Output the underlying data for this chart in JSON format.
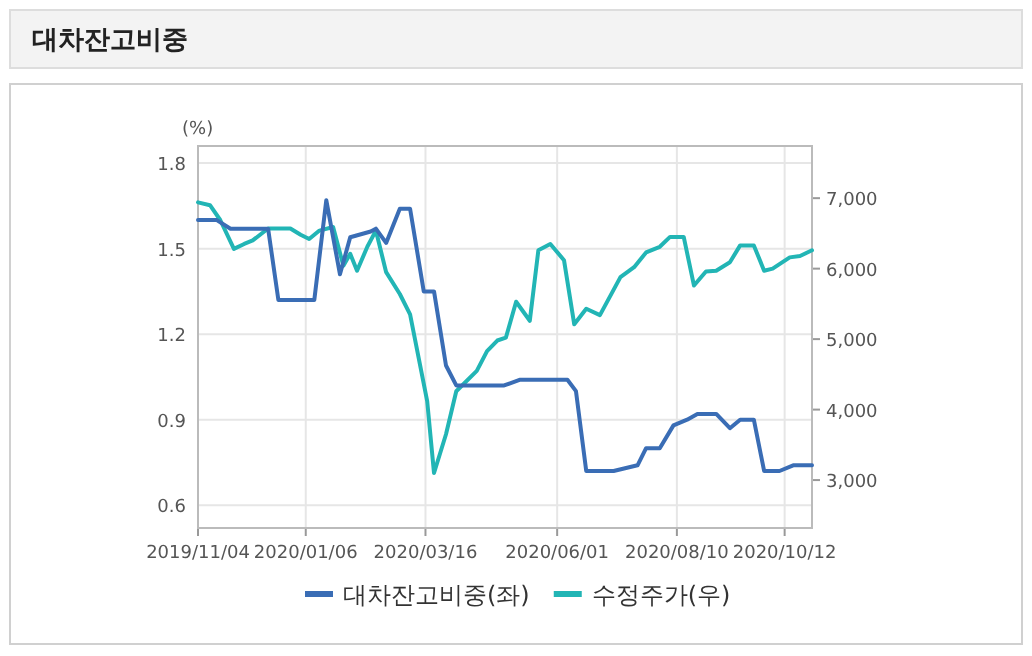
{
  "chart_data": {
    "type": "line",
    "title": "대차잔고비중",
    "ylabel": "(%)",
    "xlim": [
      "2019-11-04",
      "2020-10-28"
    ],
    "xticks": [
      {
        "value": "2019-11-04",
        "label": "2019/11/04"
      },
      {
        "value": "2020-01-06",
        "label": "2020/01/06"
      },
      {
        "value": "2020-03-16",
        "label": "2020/03/16"
      },
      {
        "value": "2020-06-01",
        "label": "2020/06/01"
      },
      {
        "value": "2020-08-10",
        "label": "2020/08/10"
      },
      {
        "value": "2020-10-12",
        "label": "2020/10/12"
      }
    ],
    "ylim": [
      0.52,
      1.86
    ],
    "yticks": [
      0.6,
      0.9,
      1.2,
      1.5,
      1.8
    ],
    "y2lim": [
      2320,
      7740
    ],
    "y2ticks": [
      {
        "value": 3000,
        "label": "3,000"
      },
      {
        "value": 4000,
        "label": "4,000"
      },
      {
        "value": 5000,
        "label": "5,000"
      },
      {
        "value": 6000,
        "label": "6,000"
      },
      {
        "value": 7000,
        "label": "7,000"
      }
    ],
    "grid": true,
    "legend": "bottom",
    "marker": "none",
    "line_style": "solid",
    "series": [
      {
        "name": "대차잔고비중(좌)",
        "color": "#3a6db5",
        "x": [
          "2019-11-04",
          "2019-11-15",
          "2019-11-23",
          "2019-12-15",
          "2019-12-21",
          "2020-01-11",
          "2020-01-18",
          "2020-01-26",
          "2020-02-01",
          "2020-02-13",
          "2020-02-16",
          "2020-02-22",
          "2020-03-01",
          "2020-03-07",
          "2020-03-15",
          "2020-03-21",
          "2020-03-28",
          "2020-04-03",
          "2020-05-01",
          "2020-05-10",
          "2020-06-07",
          "2020-06-12",
          "2020-06-18",
          "2020-07-04",
          "2020-07-18",
          "2020-07-23",
          "2020-07-31",
          "2020-08-08",
          "2020-08-16",
          "2020-08-22",
          "2020-09-02",
          "2020-09-10",
          "2020-09-16",
          "2020-09-24",
          "2020-09-30",
          "2020-10-09",
          "2020-10-17",
          "2020-10-28"
        ],
        "values": [
          1.6,
          1.6,
          1.57,
          1.57,
          1.32,
          1.32,
          1.67,
          1.41,
          1.54,
          1.56,
          1.57,
          1.52,
          1.64,
          1.64,
          1.35,
          1.35,
          1.09,
          1.02,
          1.02,
          1.04,
          1.04,
          1.0,
          0.72,
          0.72,
          0.74,
          0.8,
          0.8,
          0.88,
          0.9,
          0.92,
          0.92,
          0.87,
          0.9,
          0.9,
          0.72,
          0.72,
          0.74,
          0.74
        ]
      },
      {
        "name": "수정주가(우)",
        "color": "#22b5b5",
        "axis": "y2",
        "x": [
          "2019-11-04",
          "2019-11-11",
          "2019-11-17",
          "2019-11-25",
          "2019-12-01",
          "2019-12-06",
          "2019-12-15",
          "2019-12-28",
          "2020-01-03",
          "2020-01-08",
          "2020-01-14",
          "2020-01-22",
          "2020-01-28",
          "2020-02-01",
          "2020-02-05",
          "2020-02-11",
          "2020-02-16",
          "2020-02-22",
          "2020-03-01",
          "2020-03-07",
          "2020-03-17",
          "2020-03-21",
          "2020-03-28",
          "2020-04-03",
          "2020-04-15",
          "2020-04-21",
          "2020-04-27",
          "2020-05-02",
          "2020-05-08",
          "2020-05-16",
          "2020-05-21",
          "2020-05-28",
          "2020-06-05",
          "2020-06-11",
          "2020-06-18",
          "2020-06-26",
          "2020-07-08",
          "2020-07-16",
          "2020-07-23",
          "2020-07-31",
          "2020-08-06",
          "2020-08-14",
          "2020-08-20",
          "2020-08-27",
          "2020-09-02",
          "2020-09-10",
          "2020-09-16",
          "2020-09-24",
          "2020-09-30",
          "2020-10-05",
          "2020-10-15",
          "2020-10-21",
          "2020-10-28"
        ],
        "values": [
          6940,
          6900,
          6690,
          6280,
          6350,
          6400,
          6570,
          6570,
          6480,
          6420,
          6540,
          6590,
          6040,
          6210,
          5970,
          6310,
          6540,
          5950,
          5640,
          5350,
          4120,
          3100,
          3650,
          4260,
          4550,
          4830,
          4980,
          5020,
          5530,
          5260,
          6260,
          6350,
          6120,
          5210,
          5430,
          5340,
          5880,
          6020,
          6230,
          6310,
          6450,
          6450,
          5760,
          5960,
          5970,
          6090,
          6330,
          6330,
          5970,
          6000,
          6160,
          6180,
          6260
        ]
      }
    ]
  }
}
